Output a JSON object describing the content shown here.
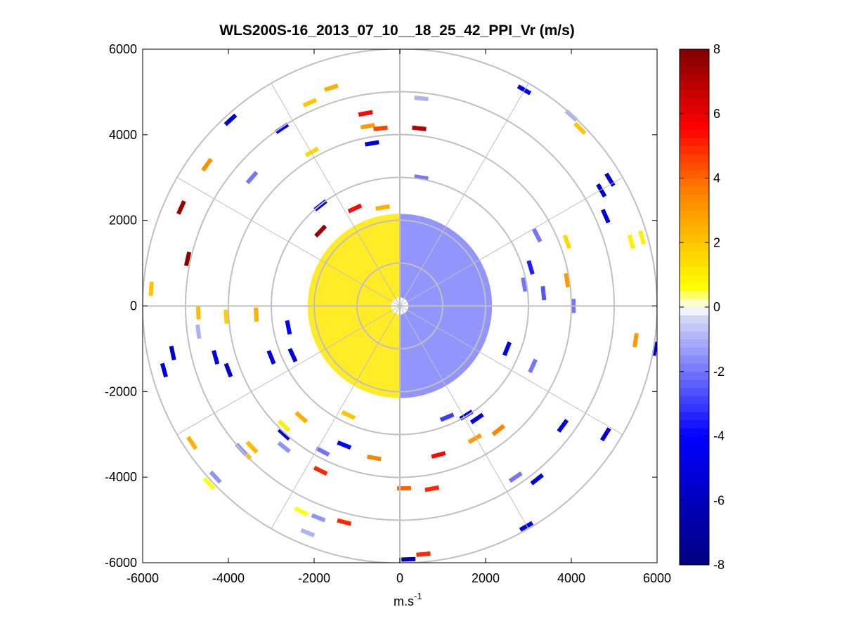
{
  "chart_data": {
    "type": "heatmap",
    "subtype": "polar-ppi-scan",
    "title": "WLS200S-16_2013_07_10__18_25_42_PPI_Vr (m/s)",
    "xlabel": "m.s",
    "xlabel_exponent": "-1",
    "ylabel": "",
    "xlim": [
      -6000,
      6000
    ],
    "ylim": [
      -6000,
      6000
    ],
    "x_ticks": [
      -6000,
      -4000,
      -2000,
      0,
      2000,
      4000,
      6000
    ],
    "y_ticks": [
      6000,
      4000,
      2000,
      0,
      -2000,
      -4000,
      -6000
    ],
    "grid_rings_m": [
      1000,
      2000,
      3000,
      4000,
      5000,
      6000
    ],
    "grid_spokes_deg": [
      0,
      30,
      60,
      90,
      120,
      150,
      180,
      210,
      240,
      270,
      300,
      330
    ],
    "colorbar": {
      "min": -8,
      "max": 8,
      "ticks": [
        8,
        6,
        4,
        2,
        0,
        -2,
        -4,
        -6,
        -8
      ],
      "colors": {
        "dark_red": "#7f0000",
        "red": "#ff0000",
        "orange": "#ff8000",
        "yellow": "#ffff00",
        "white": "#ffffff",
        "pale_blue": "#d0d4f6",
        "blue": "#0000ff",
        "dark_blue": "#00007f"
      }
    },
    "near_field_range_m": [
      200,
      2150
    ],
    "near_field_sectors": [
      {
        "name": "west-half",
        "az_from_deg": 180,
        "az_to_deg": 360,
        "velocity_ms": 1.2
      },
      {
        "name": "east-half",
        "az_from_deg": 0,
        "az_to_deg": 180,
        "velocity_ms": -1.8
      }
    ],
    "far_gates": [
      {
        "x": -5100,
        "y": 2300,
        "v": 7.5
      },
      {
        "x": -4950,
        "y": 1100,
        "v": 7.8
      },
      {
        "x": -4500,
        "y": 3300,
        "v": 3.2
      },
      {
        "x": -3950,
        "y": 4350,
        "v": -5.5
      },
      {
        "x": -3450,
        "y": 3000,
        "v": -2.0
      },
      {
        "x": -2750,
        "y": 4150,
        "v": -4.5
      },
      {
        "x": -2050,
        "y": 3600,
        "v": 1.5
      },
      {
        "x": -2100,
        "y": 4750,
        "v": 2.0
      },
      {
        "x": -5800,
        "y": 400,
        "v": 2.0
      },
      {
        "x": -4700,
        "y": -150,
        "v": 2.2
      },
      {
        "x": -4050,
        "y": -250,
        "v": 1.8
      },
      {
        "x": -3350,
        "y": -200,
        "v": 2.5
      },
      {
        "x": -2600,
        "y": -500,
        "v": -4.0
      },
      {
        "x": -5500,
        "y": -1500,
        "v": -5.0
      },
      {
        "x": -4300,
        "y": -1200,
        "v": -5.0
      },
      {
        "x": -3000,
        "y": -1200,
        "v": -5.0
      },
      {
        "x": -4700,
        "y": -600,
        "v": -1.0
      },
      {
        "x": -5300,
        "y": -1100,
        "v": -5.5
      },
      {
        "x": -4000,
        "y": -1500,
        "v": -5.5
      },
      {
        "x": -2500,
        "y": -1150,
        "v": -5.0
      },
      {
        "x": -4850,
        "y": -3200,
        "v": 2.5
      },
      {
        "x": -4300,
        "y": -4000,
        "v": -1.5
      },
      {
        "x": -4450,
        "y": -4150,
        "v": 0.6
      },
      {
        "x": -3450,
        "y": -3300,
        "v": 2.2
      },
      {
        "x": -3600,
        "y": -3450,
        "v": 2.0
      },
      {
        "x": -3700,
        "y": -3350,
        "v": -1.5
      },
      {
        "x": -2700,
        "y": -2800,
        "v": 1.0
      },
      {
        "x": -2300,
        "y": -2600,
        "v": 2.5
      },
      {
        "x": -2700,
        "y": -3000,
        "v": -5.0
      },
      {
        "x": -2700,
        "y": -3300,
        "v": -1.5
      },
      {
        "x": -1800,
        "y": -3400,
        "v": -2.0
      },
      {
        "x": -1200,
        "y": -2550,
        "v": 2.0
      },
      {
        "x": -1850,
        "y": -3850,
        "v": 5.0
      },
      {
        "x": -1300,
        "y": -3250,
        "v": -4.0
      },
      {
        "x": -600,
        "y": -3550,
        "v": 3.5
      },
      {
        "x": -2300,
        "y": -4800,
        "v": 0.6
      },
      {
        "x": -1900,
        "y": -4950,
        "v": -1.5
      },
      {
        "x": -2150,
        "y": -5300,
        "v": -1.0
      },
      {
        "x": -1300,
        "y": -5050,
        "v": 5.0
      },
      {
        "x": 900,
        "y": -3480,
        "v": 5.5
      },
      {
        "x": 100,
        "y": -4260,
        "v": 4.0
      },
      {
        "x": 750,
        "y": -4270,
        "v": 5.0
      },
      {
        "x": 550,
        "y": -5800,
        "v": 5.0
      },
      {
        "x": 200,
        "y": -5920,
        "v": -6.0
      },
      {
        "x": 1100,
        "y": -2600,
        "v": -3.0
      },
      {
        "x": 1550,
        "y": -2550,
        "v": -5.0
      },
      {
        "x": 1800,
        "y": -2630,
        "v": -5.0
      },
      {
        "x": 1750,
        "y": -3100,
        "v": 3.0
      },
      {
        "x": 2300,
        "y": -2900,
        "v": 3.5
      },
      {
        "x": 2700,
        "y": -4000,
        "v": -2.0
      },
      {
        "x": 3200,
        "y": -4050,
        "v": -5.0
      },
      {
        "x": 2950,
        "y": -5150,
        "v": -5.0
      },
      {
        "x": 3800,
        "y": -2800,
        "v": -5.0
      },
      {
        "x": 4800,
        "y": -3000,
        "v": -5.5
      },
      {
        "x": 3100,
        "y": -1400,
        "v": -2.0
      },
      {
        "x": 2500,
        "y": -1000,
        "v": -4.5
      },
      {
        "x": 4050,
        "y": 0,
        "v": -2.0
      },
      {
        "x": 3350,
        "y": 300,
        "v": -2.5
      },
      {
        "x": 3050,
        "y": 900,
        "v": -3.5
      },
      {
        "x": 2900,
        "y": 500,
        "v": -2.0
      },
      {
        "x": 3200,
        "y": 1650,
        "v": -2.0
      },
      {
        "x": 3900,
        "y": 600,
        "v": 3.0
      },
      {
        "x": 3900,
        "y": 1500,
        "v": 1.5
      },
      {
        "x": 4700,
        "y": 2700,
        "v": -5.5
      },
      {
        "x": 4900,
        "y": 2950,
        "v": -5.5
      },
      {
        "x": 4800,
        "y": 2100,
        "v": -5.5
      },
      {
        "x": 5400,
        "y": 1500,
        "v": 1.0
      },
      {
        "x": 5650,
        "y": 1600,
        "v": 1.0
      },
      {
        "x": 5500,
        "y": -800,
        "v": 3.0
      },
      {
        "x": 5950,
        "y": -1000,
        "v": -5.0
      },
      {
        "x": 4200,
        "y": 4150,
        "v": 2.0
      },
      {
        "x": 4000,
        "y": 4450,
        "v": -1.0
      },
      {
        "x": 2900,
        "y": 5050,
        "v": -4.0
      },
      {
        "x": 500,
        "y": 4850,
        "v": -1.0
      },
      {
        "x": 450,
        "y": 4150,
        "v": 7.0
      },
      {
        "x": 500,
        "y": 3000,
        "v": -2.0
      },
      {
        "x": -800,
        "y": 4500,
        "v": 5.5
      },
      {
        "x": -750,
        "y": 4200,
        "v": 3.0
      },
      {
        "x": -450,
        "y": 4150,
        "v": 4.5
      },
      {
        "x": -650,
        "y": 3800,
        "v": -5.0
      },
      {
        "x": -1600,
        "y": 5100,
        "v": 2.5
      },
      {
        "x": -1850,
        "y": 2350,
        "v": -4.5
      },
      {
        "x": -1850,
        "y": 1750,
        "v": 7.5
      },
      {
        "x": -1050,
        "y": 2280,
        "v": 5.5
      },
      {
        "x": -400,
        "y": 2300,
        "v": 2.5
      }
    ]
  }
}
